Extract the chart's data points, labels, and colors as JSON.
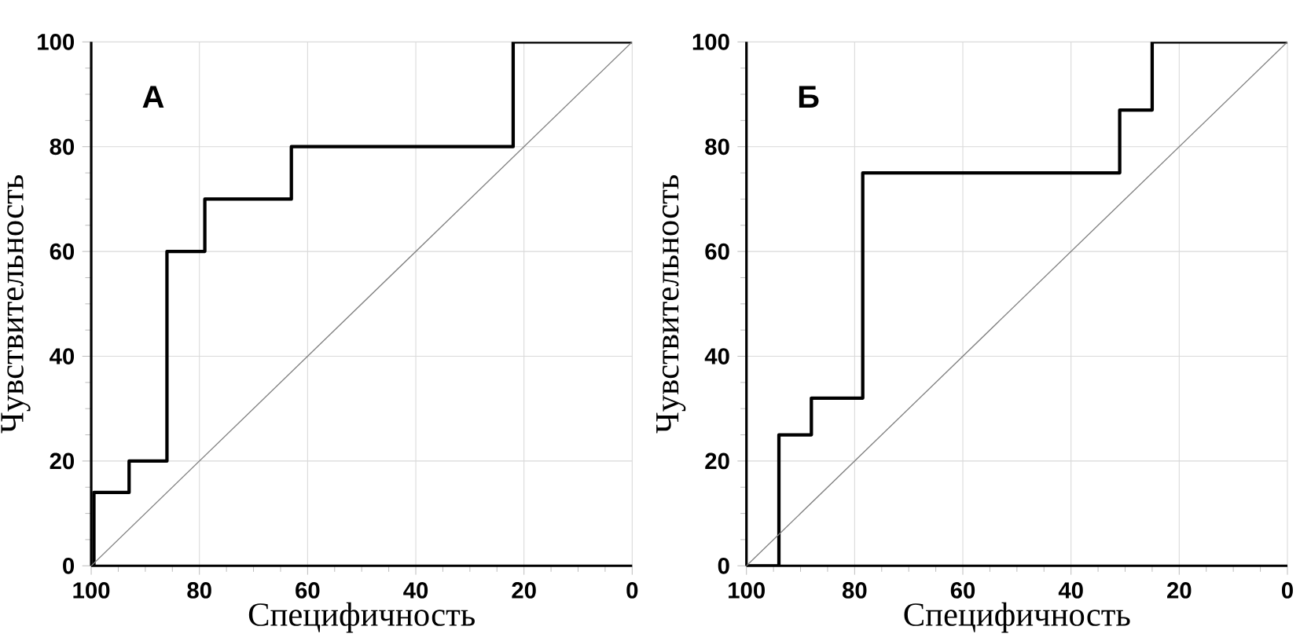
{
  "chart_data": [
    {
      "type": "line",
      "annotations": [
        "А"
      ],
      "xlabel": "Специфичность",
      "ylabel": "Чувствительность",
      "xlim": [
        100,
        0
      ],
      "ylim": [
        0,
        100
      ],
      "xticks": [
        100,
        80,
        60,
        40,
        20,
        0
      ],
      "yticks": [
        0,
        20,
        40,
        60,
        80,
        100
      ],
      "grid": true,
      "series": [
        {
          "color": "#000000",
          "x": [
            99.5,
            99.5,
            93,
            93,
            86,
            86,
            79,
            79,
            63,
            63,
            22,
            22,
            0
          ],
          "values": [
            0,
            14,
            14,
            20,
            20,
            60,
            60,
            70,
            70,
            80,
            80,
            100,
            100
          ]
        },
        {
          "color": "#808080",
          "x": [
            100,
            0
          ],
          "values": [
            0,
            100
          ]
        }
      ]
    },
    {
      "type": "line",
      "annotations": [
        "Б"
      ],
      "xlabel": "Специфичность",
      "ylabel": "Чувствительность",
      "xlim": [
        100,
        0
      ],
      "ylim": [
        0,
        100
      ],
      "xticks": [
        100,
        80,
        60,
        40,
        20,
        0
      ],
      "yticks": [
        0,
        20,
        40,
        60,
        80,
        100
      ],
      "grid": true,
      "series": [
        {
          "color": "#000000",
          "x": [
            100,
            94,
            94,
            88,
            88,
            78.5,
            78.5,
            31,
            31,
            25,
            25,
            0
          ],
          "values": [
            0,
            0,
            25,
            25,
            32,
            32,
            75,
            75,
            87,
            87,
            100,
            100
          ]
        },
        {
          "color": "#808080",
          "x": [
            100,
            0
          ],
          "values": [
            0,
            100
          ]
        }
      ]
    }
  ]
}
